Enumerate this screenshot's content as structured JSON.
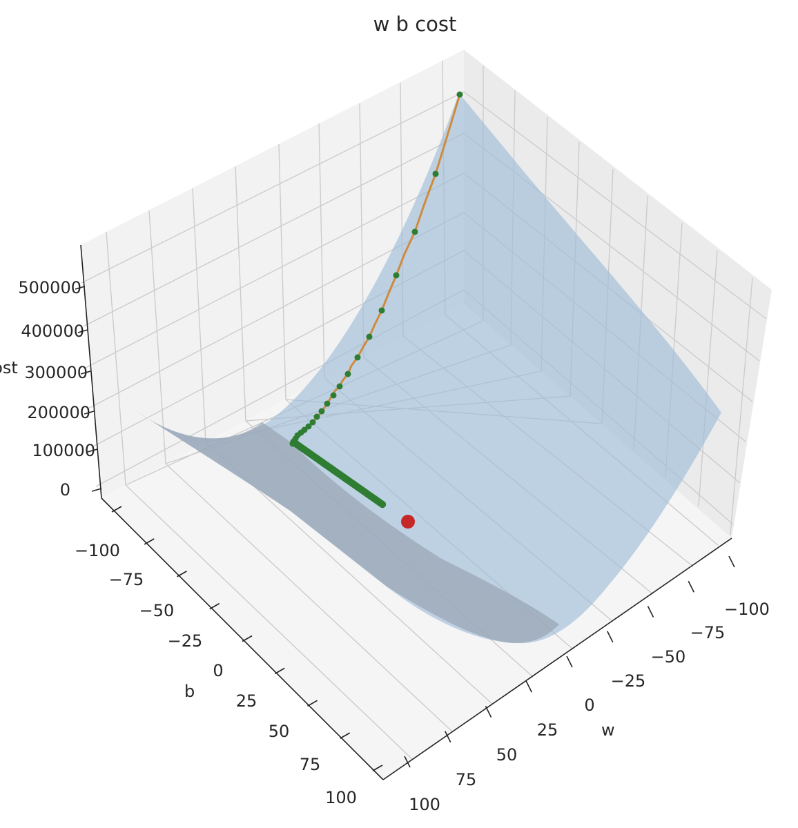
{
  "chart_data": {
    "type": "surface3d",
    "title": "w b cost",
    "xlabel": "w",
    "ylabel": "b",
    "zlabel": "cost",
    "x_ticks": [
      "−100",
      "−75",
      "−50",
      "−25",
      "0",
      "25",
      "50",
      "75",
      "100"
    ],
    "y_ticks": [
      "−100",
      "−75",
      "−50",
      "−25",
      "0",
      "25",
      "50",
      "75",
      "100"
    ],
    "z_ticks": [
      "0",
      "100000",
      "200000",
      "300000",
      "400000",
      "500000"
    ],
    "xlim": [
      -100,
      100
    ],
    "ylim": [
      -100,
      100
    ],
    "zlim": [
      0,
      560000
    ],
    "grid": true,
    "colors": {
      "surface": "#9dbcd9",
      "path_line": "#d08a3c",
      "path_points": "#2e7d32",
      "minimum_marker": "#c62828",
      "pane": "#f2f2f2",
      "grid": "#cccccc"
    },
    "descent_path": {
      "series_color": "green",
      "start": {
        "w": -100,
        "b": -100,
        "cost": 542000
      },
      "points_cost_early": [
        542000,
        430000,
        350000,
        290000,
        245000,
        205000,
        172000,
        150000,
        135000,
        122000,
        112000,
        105000,
        100000
      ],
      "corner": {
        "w": -52,
        "b": -50,
        "cost": 95000
      },
      "end": {
        "w": -20,
        "b": 22,
        "cost": 78000
      }
    },
    "minimum_point": {
      "w": -20,
      "b": 24,
      "cost": 73000
    }
  }
}
